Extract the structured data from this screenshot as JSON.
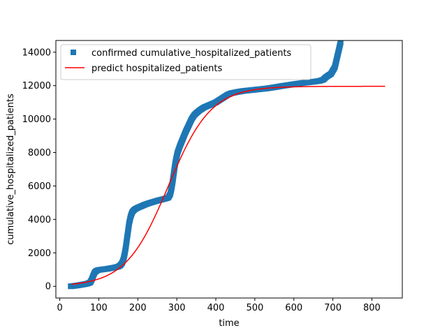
{
  "chart_data": {
    "type": "scatter",
    "xlabel": "time",
    "ylabel": "cumulative_hospitalized_patients",
    "xlim": [
      -10,
      878
    ],
    "ylim": [
      -700,
      14700
    ],
    "xticks": [
      0,
      100,
      200,
      300,
      400,
      500,
      600,
      700,
      800
    ],
    "yticks": [
      0,
      2000,
      4000,
      6000,
      8000,
      10000,
      12000,
      14000
    ],
    "grid": false,
    "legend_position": "top-left",
    "series": [
      {
        "name": "confirmed cumulative_hospitalized_patients",
        "kind": "scatter",
        "marker": "square",
        "color": "#1f77b4",
        "points": [
          [
            28,
            0
          ],
          [
            35,
            20
          ],
          [
            45,
            50
          ],
          [
            55,
            90
          ],
          [
            65,
            130
          ],
          [
            72,
            170
          ],
          [
            78,
            230
          ],
          [
            82,
            400
          ],
          [
            86,
            650
          ],
          [
            90,
            850
          ],
          [
            95,
            940
          ],
          [
            100,
            980
          ],
          [
            110,
            1010
          ],
          [
            120,
            1040
          ],
          [
            130,
            1080
          ],
          [
            140,
            1120
          ],
          [
            150,
            1180
          ],
          [
            155,
            1250
          ],
          [
            160,
            1400
          ],
          [
            163,
            1600
          ],
          [
            166,
            1900
          ],
          [
            169,
            2300
          ],
          [
            172,
            2800
          ],
          [
            175,
            3300
          ],
          [
            178,
            3800
          ],
          [
            182,
            4200
          ],
          [
            186,
            4450
          ],
          [
            192,
            4600
          ],
          [
            200,
            4700
          ],
          [
            210,
            4800
          ],
          [
            220,
            4900
          ],
          [
            230,
            4980
          ],
          [
            240,
            5050
          ],
          [
            250,
            5120
          ],
          [
            260,
            5180
          ],
          [
            270,
            5240
          ],
          [
            278,
            5300
          ],
          [
            283,
            5500
          ],
          [
            286,
            5800
          ],
          [
            289,
            6200
          ],
          [
            292,
            6700
          ],
          [
            295,
            7200
          ],
          [
            298,
            7600
          ],
          [
            302,
            8000
          ],
          [
            308,
            8400
          ],
          [
            315,
            8800
          ],
          [
            322,
            9200
          ],
          [
            330,
            9600
          ],
          [
            338,
            10000
          ],
          [
            345,
            10250
          ],
          [
            352,
            10400
          ],
          [
            360,
            10550
          ],
          [
            370,
            10700
          ],
          [
            380,
            10800
          ],
          [
            390,
            10900
          ],
          [
            400,
            11000
          ],
          [
            410,
            11150
          ],
          [
            420,
            11300
          ],
          [
            430,
            11450
          ],
          [
            440,
            11550
          ],
          [
            455,
            11620
          ],
          [
            470,
            11680
          ],
          [
            490,
            11730
          ],
          [
            510,
            11780
          ],
          [
            530,
            11830
          ],
          [
            550,
            11900
          ],
          [
            570,
            11980
          ],
          [
            590,
            12050
          ],
          [
            610,
            12120
          ],
          [
            630,
            12180
          ],
          [
            650,
            12230
          ],
          [
            665,
            12280
          ],
          [
            675,
            12350
          ],
          [
            682,
            12500
          ],
          [
            688,
            12600
          ],
          [
            695,
            12700
          ],
          [
            700,
            12900
          ],
          [
            705,
            13100
          ],
          [
            708,
            13400
          ],
          [
            711,
            13700
          ],
          [
            714,
            14000
          ],
          [
            717,
            14300
          ],
          [
            720,
            14600
          ]
        ]
      },
      {
        "name": "predict hospitalized_patients",
        "kind": "line",
        "color": "#ff0000",
        "model": {
          "L": 11960,
          "k": 0.0183,
          "x0": 278,
          "x_start": 30,
          "x_end": 835
        }
      }
    ]
  }
}
